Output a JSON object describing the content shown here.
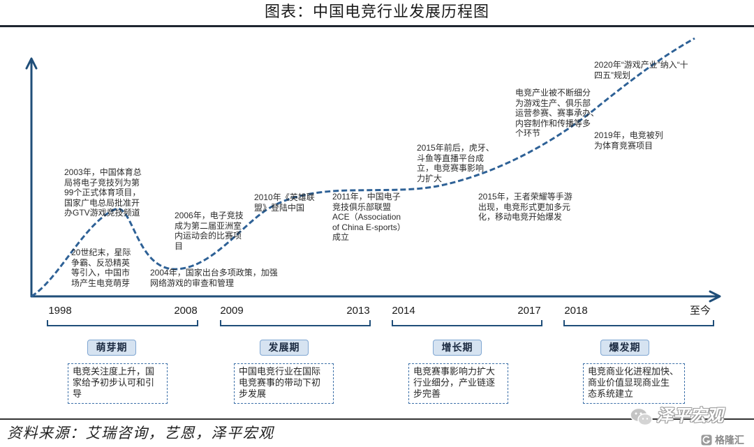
{
  "title": "图表：中国电竞行业发展历程图",
  "milestones": [
    "20世纪末，星际\n争霸、反恐精英\n等引入，中国市\n场产生电竞萌芽",
    "2003年，中国体育总\n局将电子竞技列为第\n99个正式体育项目，\n国家广电总局批准开\n办GTV游戏竞技频道",
    "2004年，国家出台多项政策，加强\n网络游戏的审查和管理",
    "2006年，电子竞技\n成为第二届亚洲室\n内运动会的比赛项\n目",
    "2010年《英雄联\n盟》登陆中国",
    "2011年，中国电子\n竞技俱乐部联盟\nACE（Association\nof China E-sports）\n成立",
    "2015年前后，虎牙、\n斗鱼等直播平台成\n立，电竞赛事影响\n力扩大",
    "2015年，王者荣耀等手游\n出现，电竞形式更加多元\n化，移动电竞开始爆发",
    "电竞产业被不断细分\n为游戏生产、俱乐部\n运营参赛、赛事承办、\n内容制作和传播等多\n个环节",
    "2019年，电竞被列\n为体育竞赛项目",
    "2020年“游戏产业”纳入“十\n四五”规划"
  ],
  "phases": [
    {
      "name": "萌芽期",
      "start": "1998",
      "end": "2008",
      "summary": "电竞关注度上升，国\n家给予初步认可和引\n导"
    },
    {
      "name": "发展期",
      "start": "2009",
      "end": "2013",
      "summary": "中国电竞行业在国际\n电竞赛事的带动下初\n步发展"
    },
    {
      "name": "增长期",
      "start": "2014",
      "end": "2017",
      "summary": "电竞赛事影响力扩大\n行业细分，产业链逐\n步完善"
    },
    {
      "name": "爆发期",
      "start": "2018",
      "end": "至今",
      "summary": "电竞商业化进程加快、\n商业价值显现商业生\n态系统建立"
    }
  ],
  "source": "资料来源：艾瑞咨询，艺恩，泽平宏观",
  "watermark": {
    "account": "泽平宏观",
    "logo_text": "格隆汇"
  },
  "icons": {
    "watermark": "wechat-icon",
    "logo": "gelonghui-logo-icon"
  },
  "colors": {
    "axis": "#1f4e79",
    "curve": "#2e6196",
    "phase_fill": "#d6e3f1",
    "phase_border": "#7fa6d2",
    "summary_border": "#3c70a8"
  }
}
